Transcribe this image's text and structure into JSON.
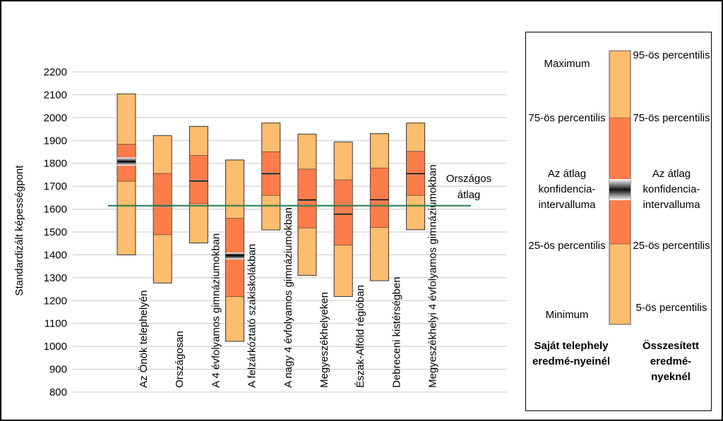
{
  "chart_data": {
    "type": "boxplot",
    "ylabel": "Standardizált képességpont",
    "ylim": [
      800,
      2200
    ],
    "yticks": [
      800,
      900,
      1000,
      1100,
      1200,
      1300,
      1400,
      1500,
      1600,
      1700,
      1800,
      1900,
      2000,
      2100,
      2200
    ],
    "reference_line": {
      "label_line1": "Országos",
      "label_line2": "átlag",
      "value": 1615,
      "color": "#2e7d4f"
    },
    "categories": [
      "Az Önök telephelyén",
      "Országosan",
      "A 4 évfolyamos gimnáziumokban",
      "A felzárkóztató szakiskolákban",
      "A nagy 4 évfolyamos gimnáziumokban",
      "Megyeszékhelyeken",
      "Észak-Alföld régióban",
      "Debreceni kistérségben",
      "Megyeszékhelyi 4 évfolyamos gimnáziumokban"
    ],
    "series": [
      {
        "name": "Az Önök telephelyén",
        "p5": 1400,
        "p25": 1722,
        "ci_low": 1790,
        "mean": 1808,
        "ci_high": 1826,
        "p75": 1884,
        "p95": 2104
      },
      {
        "name": "Országosan",
        "p5": 1277,
        "p25": 1488,
        "ci_low": 1612,
        "mean": 1614,
        "ci_high": 1616,
        "p75": 1756,
        "p95": 1922
      },
      {
        "name": "A 4 évfolyamos gimnáziumokban",
        "p5": 1452,
        "p25": 1624,
        "ci_low": 1719,
        "mean": 1723,
        "ci_high": 1727,
        "p75": 1834,
        "p95": 1962
      },
      {
        "name": "A felzárkóztató szakiskolákban",
        "p5": 1022,
        "p25": 1217,
        "ci_low": 1380,
        "mean": 1400,
        "ci_high": 1410,
        "p75": 1560,
        "p95": 1815
      },
      {
        "name": "A nagy 4 évfolyamos gimnáziumokban",
        "p5": 1509,
        "p25": 1660,
        "ci_low": 1751,
        "mean": 1755,
        "ci_high": 1759,
        "p75": 1851,
        "p95": 1977
      },
      {
        "name": "Megyeszékhelyeken",
        "p5": 1310,
        "p25": 1518,
        "ci_low": 1638,
        "mean": 1640,
        "ci_high": 1642,
        "p75": 1775,
        "p95": 1928
      },
      {
        "name": "Észak-Alföld régióban",
        "p5": 1218,
        "p25": 1443,
        "ci_low": 1575,
        "mean": 1578,
        "ci_high": 1581,
        "p75": 1728,
        "p95": 1894
      },
      {
        "name": "Debreceni kistérségben",
        "p5": 1287,
        "p25": 1520,
        "ci_low": 1638,
        "mean": 1641,
        "ci_high": 1644,
        "p75": 1780,
        "p95": 1930
      },
      {
        "name": "Megyeszékhelyi 4 évfolyamos gimnáziumokban",
        "p5": 1510,
        "p25": 1660,
        "ci_low": 1752,
        "mean": 1755,
        "ci_high": 1758,
        "p75": 1853,
        "p95": 1977
      }
    ],
    "colors": {
      "outer": "#fdbd6e",
      "inner": "#fc7c4a",
      "ci_dark": "#111111",
      "ci_light": "#ffffff",
      "grid": "#c8c8c8"
    }
  },
  "legend": {
    "left_labels": [
      "Maximum",
      "75-ös percentilis",
      "Az átlag konfidencia-intervalluma",
      "25-ös percentilis",
      "Minimum"
    ],
    "right_labels": [
      "95-ös percentilis",
      "75-ös percentilis",
      "Az átlag konfidencia-intervalluma",
      "25-ös percentilis",
      "5-ös percentilis"
    ],
    "left_title": "Saját telephely eredmé-nyeinél",
    "right_title": "Összesített eredmé-nyeknél"
  }
}
